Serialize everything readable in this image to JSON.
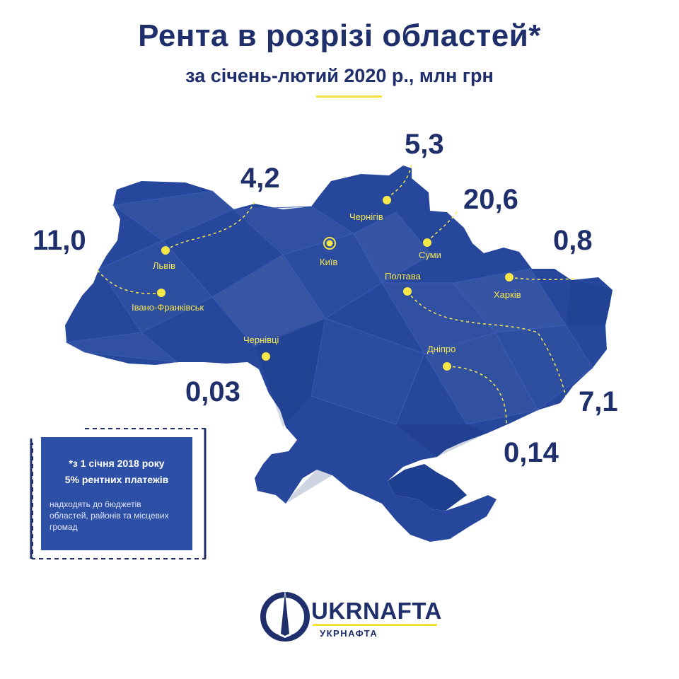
{
  "header": {
    "title": "Рента в розрізі областей*",
    "subtitle": "за січень-лютий 2020 р., млн грн"
  },
  "regions": [
    {
      "city": "Львів",
      "value": "4,2"
    },
    {
      "city": "Івано-Франківськ",
      "value": "11,0"
    },
    {
      "city": "Київ",
      "value": ""
    },
    {
      "city": "Чернігів",
      "value": "5,3"
    },
    {
      "city": "Суми",
      "value": "20,6"
    },
    {
      "city": "Харків",
      "value": "0,8"
    },
    {
      "city": "Полтава",
      "value": "7,1"
    },
    {
      "city": "Дніпро",
      "value": "0,14"
    },
    {
      "city": "Чернівці",
      "value": "0,03"
    }
  ],
  "note": {
    "line1": "*з 1 січня 2018 року",
    "line2": "5% рентних платежів",
    "small": [
      "надходять до бюджетів",
      "областей, районів та місцевих",
      "громад"
    ]
  },
  "brand": {
    "name": "UKRNAFTA",
    "sub": "УКРНАФТА"
  },
  "colors": {
    "map_fill": "#26479c",
    "accent_yellow": "#f7e84a",
    "text_navy": "#1f2f6b"
  }
}
